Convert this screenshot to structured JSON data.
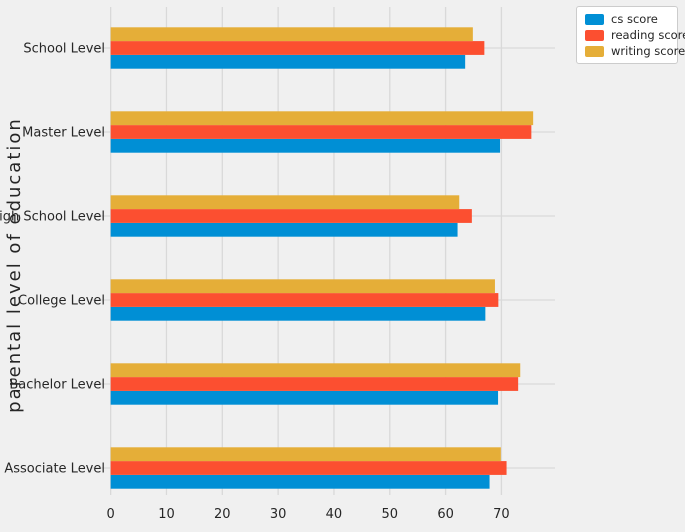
{
  "chart_data": {
    "type": "bar",
    "orientation": "horizontal",
    "title": "",
    "xlabel": "",
    "ylabel": "parental level of education",
    "categories": [
      "School Level",
      "Master Level",
      "High School Level",
      "College Level",
      "Bachelor Level",
      "Associate Level"
    ],
    "series": [
      {
        "name": "cs score",
        "color": "#008fd5",
        "values": [
          63.5,
          69.75,
          62.14,
          67.13,
          69.39,
          67.88
        ]
      },
      {
        "name": "reading score",
        "color": "#fc4f30",
        "values": [
          66.94,
          75.37,
          64.7,
          69.46,
          73.0,
          70.93
        ]
      },
      {
        "name": "writing score",
        "color": "#e5ae38",
        "values": [
          64.89,
          75.68,
          62.45,
          68.84,
          73.38,
          69.9
        ]
      }
    ],
    "x_ticks": [
      0,
      10,
      20,
      30,
      40,
      50,
      60,
      70
    ],
    "xlim": [
      -3.7,
      79.6
    ],
    "grid": true,
    "legend_position": "upper right",
    "style": {
      "background": "#f0f0f0",
      "gridline": "#d9d9d9",
      "text": "#262626",
      "legend_bg": "#ffffff",
      "legend_border": "#cccccc"
    }
  }
}
